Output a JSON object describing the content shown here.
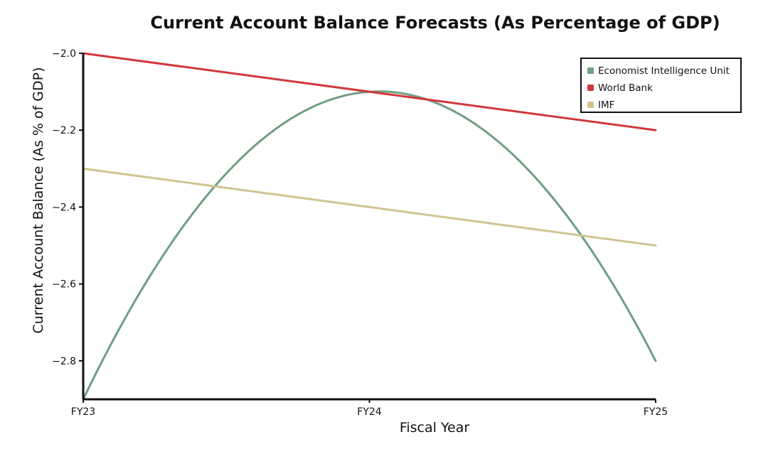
{
  "chart_data": {
    "type": "line",
    "title": "Current Account Balance Forecasts (As Percentage of GDP)",
    "xlabel": "Fiscal Year",
    "ylabel": "Current Account Balance (As % of GDP)",
    "categories": [
      "FY23",
      "FY24",
      "FY25"
    ],
    "ylim": [
      -2.9,
      -2.0
    ],
    "yticks": [
      -2.0,
      -2.2,
      -2.4,
      -2.6,
      -2.8
    ],
    "ytick_labels": [
      "−2.0",
      "−2.2",
      "−2.4",
      "−2.6",
      "−2.8"
    ],
    "grid": false,
    "legend_position": "top-right",
    "series": [
      {
        "name": "Economist Intelligence Unit",
        "color": "#6f9e82",
        "values": [
          -2.9,
          -2.1,
          -2.8
        ],
        "smooth": true
      },
      {
        "name": "World Bank",
        "color": "#d1373a",
        "values": [
          -2.0,
          -2.1,
          -2.2
        ],
        "smooth": false
      },
      {
        "name": "IMF",
        "color": "#d2c391",
        "values": [
          -2.3,
          -2.4,
          -2.5
        ],
        "smooth": false
      }
    ]
  }
}
